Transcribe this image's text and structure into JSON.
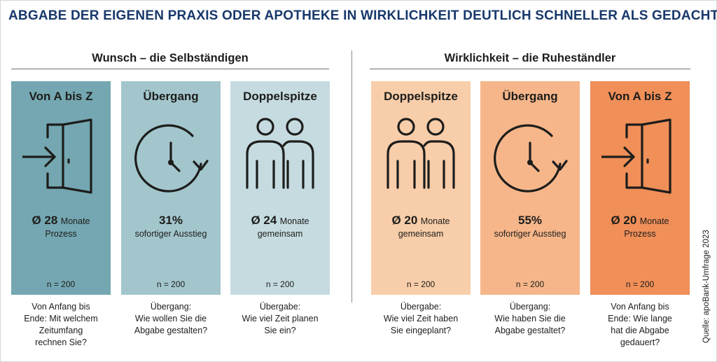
{
  "title": "ABGABE DER EIGENEN PRAXIS ODER APOTHEKE IN WIRKLICHKEIT DEUTLICH SCHNELLER ALS GEDACHT",
  "sections": {
    "left": "Wunsch – die Selbständigen",
    "right": "Wirklichkeit – die Ruheständler"
  },
  "cards": [
    {
      "heading": "Von A bis Z",
      "value": "Ø 28",
      "unit": "Monate",
      "sub": "Prozess",
      "n": "n = 200",
      "icon": "door-enter-icon",
      "color": "#74a7b1",
      "question": [
        "Von Anfang bis",
        "Ende: Mit welchem",
        "Zeitumfang",
        "rechnen Sie?"
      ]
    },
    {
      "heading": "Übergang",
      "value": "31%",
      "unit": "",
      "sub": "sofortiger Ausstieg",
      "n": "n = 200",
      "icon": "clock-icon",
      "color": "#a3c6cd",
      "question": [
        "Übergang:",
        "Wie wollen Sie die",
        "Abgabe gestalten?"
      ]
    },
    {
      "heading": "Doppelspitze",
      "value": "Ø 24",
      "unit": "Monate",
      "sub": "gemeinsam",
      "n": "n = 200",
      "icon": "two-people-icon",
      "color": "#c5dbe0",
      "question": [
        "Übergabe:",
        "Wie viel Zeit planen",
        "Sie ein?"
      ]
    },
    {
      "heading": "Doppelspitze",
      "value": "Ø 20",
      "unit": "Monate",
      "sub": "gemeinsam",
      "n": "n = 200",
      "icon": "two-people-icon",
      "color": "#f8cda9",
      "question": [
        "Übergabe:",
        "Wie viel Zeit haben",
        "Sie eingeplant?"
      ]
    },
    {
      "heading": "Übergang",
      "value": "55%",
      "unit": "",
      "sub": "sofortiger Ausstieg",
      "n": "n = 200",
      "icon": "clock-icon",
      "color": "#f6b68a",
      "question": [
        "Übergang:",
        "Wie haben Sie die",
        "Abgabe gestaltet?"
      ]
    },
    {
      "heading": "Von A bis Z",
      "value": "Ø 20",
      "unit": "Monate",
      "sub": "Prozess",
      "n": "n = 200",
      "icon": "door-enter-icon",
      "color": "#f08f58",
      "question": [
        "Von Anfang bis",
        "Ende: Wie lange",
        "hat die Abgabe",
        "gedauert?"
      ]
    }
  ],
  "source": "Quelle: apoBank-Umfrage 2023",
  "colors": {
    "title": "#18386b"
  }
}
